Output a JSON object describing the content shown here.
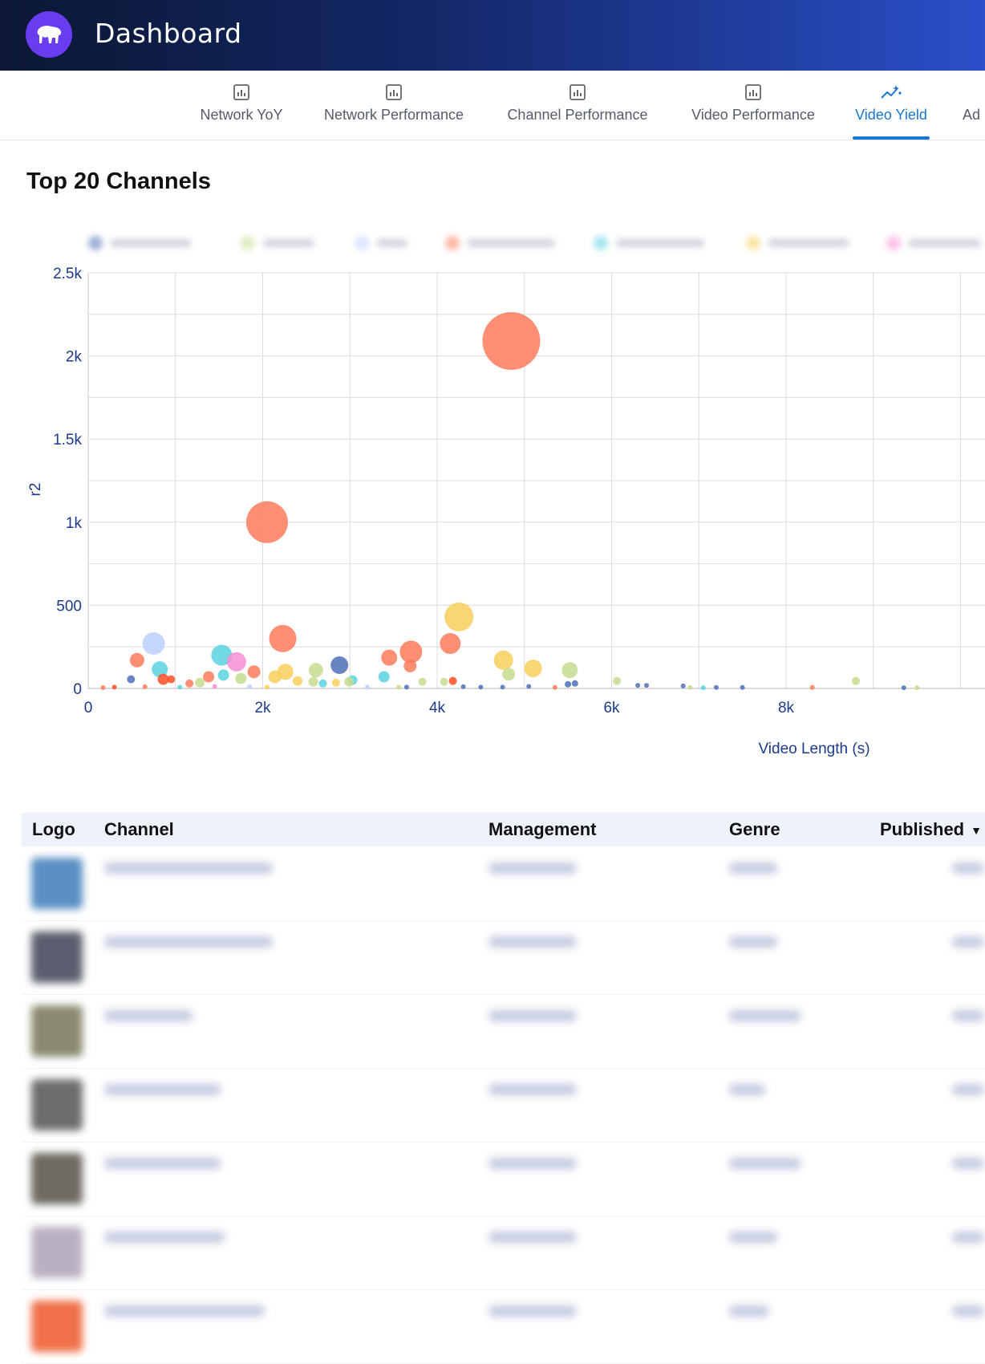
{
  "header": {
    "title": "Dashboard",
    "logo_icon": "bear-icon",
    "colors": {
      "logo_bg": "#6a3cf0",
      "bar_start": "#0b1733",
      "bar_end": "#2a4fc9"
    }
  },
  "tabs": [
    {
      "label": "Network YoY",
      "icon": "bar-chart-icon",
      "active": false
    },
    {
      "label": "Network Performance",
      "icon": "bar-chart-icon",
      "active": false
    },
    {
      "label": "Channel Performance",
      "icon": "bar-chart-icon",
      "active": false
    },
    {
      "label": "Video Performance",
      "icon": "bar-chart-icon",
      "active": false
    },
    {
      "label": "Video Yield",
      "icon": "sparkle-line-icon",
      "active": true
    },
    {
      "label": "Ad",
      "icon": "",
      "active": false
    }
  ],
  "accent_color": "#1976d2",
  "section": {
    "title": "Top 20 Channels"
  },
  "chart_data": {
    "type": "scatter",
    "title": "",
    "xlabel": "Video Length (s)",
    "ylabel": "r2",
    "xlim": [
      0,
      10000
    ],
    "ylim": [
      0,
      2500
    ],
    "x_ticks": [
      "0",
      "2k",
      "4k",
      "6k",
      "8k"
    ],
    "y_ticks": [
      "0",
      "500",
      "1k",
      "1.5k",
      "2k",
      "2.5k"
    ],
    "grid": true,
    "legend_position": "top",
    "legend_visible_text": false,
    "points": [
      {
        "x": 4850,
        "y": 2090,
        "size": 36,
        "color": "#ff7b5c"
      },
      {
        "x": 2050,
        "y": 1000,
        "size": 26,
        "color": "#ff7b5c"
      },
      {
        "x": 4250,
        "y": 430,
        "size": 18,
        "color": "#f7cf5a"
      },
      {
        "x": 2230,
        "y": 300,
        "size": 17,
        "color": "#ff7b5c"
      },
      {
        "x": 3700,
        "y": 220,
        "size": 14,
        "color": "#ff7b5c"
      },
      {
        "x": 4150,
        "y": 270,
        "size": 13,
        "color": "#ff7b5c"
      },
      {
        "x": 750,
        "y": 270,
        "size": 14,
        "color": "#bcd0ff"
      },
      {
        "x": 1530,
        "y": 200,
        "size": 13,
        "color": "#5bd3e0"
      },
      {
        "x": 1700,
        "y": 160,
        "size": 12,
        "color": "#f78fd6"
      },
      {
        "x": 2880,
        "y": 140,
        "size": 11,
        "color": "#4f6fb8"
      },
      {
        "x": 3450,
        "y": 185,
        "size": 10,
        "color": "#ff7b5c"
      },
      {
        "x": 4760,
        "y": 170,
        "size": 12,
        "color": "#f7cf5a"
      },
      {
        "x": 5100,
        "y": 120,
        "size": 11,
        "color": "#f7cf5a"
      },
      {
        "x": 5520,
        "y": 110,
        "size": 10,
        "color": "#c7dc8f"
      },
      {
        "x": 560,
        "y": 170,
        "size": 9,
        "color": "#ff7b5c"
      },
      {
        "x": 820,
        "y": 115,
        "size": 10,
        "color": "#5bd3e0"
      },
      {
        "x": 3690,
        "y": 135,
        "size": 8,
        "color": "#ff7b5c"
      },
      {
        "x": 2260,
        "y": 100,
        "size": 10,
        "color": "#f7cf5a"
      },
      {
        "x": 2610,
        "y": 110,
        "size": 9,
        "color": "#c7dc8f"
      },
      {
        "x": 4820,
        "y": 85,
        "size": 8,
        "color": "#c7dc8f"
      },
      {
        "x": 1900,
        "y": 100,
        "size": 8,
        "color": "#ff7b5c"
      },
      {
        "x": 3390,
        "y": 70,
        "size": 7,
        "color": "#5bd3e0"
      },
      {
        "x": 1550,
        "y": 80,
        "size": 7,
        "color": "#5bd3e0"
      },
      {
        "x": 1380,
        "y": 70,
        "size": 7,
        "color": "#ff7b5c"
      },
      {
        "x": 2140,
        "y": 70,
        "size": 8,
        "color": "#f7cf5a"
      },
      {
        "x": 1750,
        "y": 60,
        "size": 7,
        "color": "#c7dc8f"
      },
      {
        "x": 860,
        "y": 55,
        "size": 7,
        "color": "#ff4d24"
      },
      {
        "x": 3030,
        "y": 50,
        "size": 6,
        "color": "#5bd3e0"
      },
      {
        "x": 2990,
        "y": 40,
        "size": 6,
        "color": "#c7dc8f"
      },
      {
        "x": 2400,
        "y": 45,
        "size": 6,
        "color": "#f7cf5a"
      },
      {
        "x": 2580,
        "y": 40,
        "size": 6,
        "color": "#c7dc8f"
      },
      {
        "x": 2690,
        "y": 30,
        "size": 5,
        "color": "#5bd3e0"
      },
      {
        "x": 2840,
        "y": 35,
        "size": 5,
        "color": "#f7cf5a"
      },
      {
        "x": 3830,
        "y": 40,
        "size": 5,
        "color": "#c7dc8f"
      },
      {
        "x": 4080,
        "y": 40,
        "size": 5,
        "color": "#c7dc8f"
      },
      {
        "x": 4180,
        "y": 45,
        "size": 5,
        "color": "#ff4d24"
      },
      {
        "x": 1280,
        "y": 35,
        "size": 6,
        "color": "#c7dc8f"
      },
      {
        "x": 1160,
        "y": 30,
        "size": 5,
        "color": "#ff7b5c"
      },
      {
        "x": 490,
        "y": 55,
        "size": 5,
        "color": "#4f6fb8"
      },
      {
        "x": 950,
        "y": 55,
        "size": 5,
        "color": "#ff4d24"
      },
      {
        "x": 6060,
        "y": 45,
        "size": 5,
        "color": "#c7dc8f"
      },
      {
        "x": 8800,
        "y": 45,
        "size": 5,
        "color": "#c7dc8f"
      },
      {
        "x": 5580,
        "y": 30,
        "size": 4,
        "color": "#4f6fb8"
      },
      {
        "x": 5500,
        "y": 25,
        "size": 4,
        "color": "#4f6fb8"
      },
      {
        "x": 6300,
        "y": 18,
        "size": 3,
        "color": "#4f6fb8"
      },
      {
        "x": 6400,
        "y": 18,
        "size": 3,
        "color": "#4f6fb8"
      },
      {
        "x": 6820,
        "y": 15,
        "size": 3,
        "color": "#4f6fb8"
      },
      {
        "x": 5050,
        "y": 12,
        "size": 3,
        "color": "#4f6fb8"
      },
      {
        "x": 4300,
        "y": 10,
        "size": 3,
        "color": "#4f6fb8"
      },
      {
        "x": 7200,
        "y": 6,
        "size": 3,
        "color": "#4f6fb8"
      },
      {
        "x": 7500,
        "y": 6,
        "size": 3,
        "color": "#4f6fb8"
      },
      {
        "x": 8300,
        "y": 6,
        "size": 3,
        "color": "#ff7b5c"
      },
      {
        "x": 9350,
        "y": 4,
        "size": 3,
        "color": "#4f6fb8"
      },
      {
        "x": 170,
        "y": 5,
        "size": 3,
        "color": "#ff7b5c"
      },
      {
        "x": 300,
        "y": 8,
        "size": 3,
        "color": "#ff4d24"
      },
      {
        "x": 650,
        "y": 10,
        "size": 3,
        "color": "#ff7b5c"
      },
      {
        "x": 1050,
        "y": 8,
        "size": 3,
        "color": "#5bd3e0"
      },
      {
        "x": 1450,
        "y": 12,
        "size": 3,
        "color": "#f78fd6"
      },
      {
        "x": 1850,
        "y": 10,
        "size": 3,
        "color": "#bcd0ff"
      },
      {
        "x": 2050,
        "y": 8,
        "size": 3,
        "color": "#f7cf5a"
      },
      {
        "x": 3200,
        "y": 8,
        "size": 3,
        "color": "#bcd0ff"
      },
      {
        "x": 3560,
        "y": 8,
        "size": 3,
        "color": "#c7dc8f"
      },
      {
        "x": 3650,
        "y": 8,
        "size": 3,
        "color": "#4f6fb8"
      },
      {
        "x": 4500,
        "y": 8,
        "size": 3,
        "color": "#4f6fb8"
      },
      {
        "x": 4750,
        "y": 8,
        "size": 3,
        "color": "#4f6fb8"
      },
      {
        "x": 5350,
        "y": 6,
        "size": 3,
        "color": "#ff7b5c"
      },
      {
        "x": 6900,
        "y": 6,
        "size": 3,
        "color": "#c7dc8f"
      },
      {
        "x": 7050,
        "y": 4,
        "size": 3,
        "color": "#5bd3e0"
      },
      {
        "x": 9500,
        "y": 4,
        "size": 3,
        "color": "#c7dc8f"
      }
    ]
  },
  "legend_colors": [
    "#4f6fb8",
    "#c7dc8f",
    "#bcd0ff",
    "#ff7b5c",
    "#5bd3e0",
    "#f7cf5a",
    "#f78fd6"
  ],
  "table": {
    "columns": [
      "Logo",
      "Channel",
      "Management",
      "Genre",
      "Published"
    ],
    "sort_column": "Published",
    "rows": [
      {
        "thumb_color": "#5a8fc4"
      },
      {
        "thumb_color": "#5b5e6e"
      },
      {
        "thumb_color": "#8a8a70"
      },
      {
        "thumb_color": "#6d6d6d"
      },
      {
        "thumb_color": "#6e6a62"
      },
      {
        "thumb_color": "#b9b0c2"
      },
      {
        "thumb_color": "#f0704a"
      }
    ]
  }
}
